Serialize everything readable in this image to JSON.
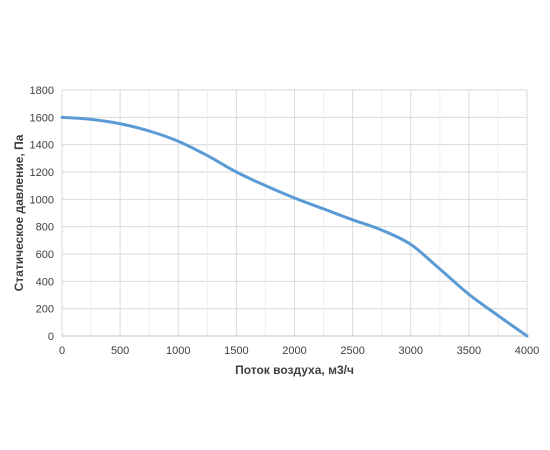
{
  "chart_data": {
    "type": "line",
    "title": "",
    "xlabel": "Поток воздуха, м3/ч",
    "ylabel": "Статическое давление, Па",
    "xlim": [
      0,
      4000
    ],
    "ylim": [
      0,
      1800
    ],
    "x_ticks": [
      0,
      500,
      1000,
      1500,
      2000,
      2500,
      3000,
      3500,
      4000
    ],
    "y_ticks": [
      0,
      200,
      400,
      600,
      800,
      1000,
      1200,
      1400,
      1600,
      1800
    ],
    "grid": true,
    "legend": "none",
    "series": [
      {
        "color": "#5b9bd5",
        "x": [
          0,
          250,
          500,
          750,
          1000,
          1250,
          1500,
          1750,
          2000,
          2250,
          2500,
          2750,
          3000,
          3250,
          3500,
          3750,
          4000
        ],
        "y": [
          1600,
          1585,
          1553,
          1500,
          1425,
          1320,
          1200,
          1100,
          1010,
          930,
          850,
          775,
          670,
          490,
          305,
          150,
          0
        ]
      }
    ]
  }
}
